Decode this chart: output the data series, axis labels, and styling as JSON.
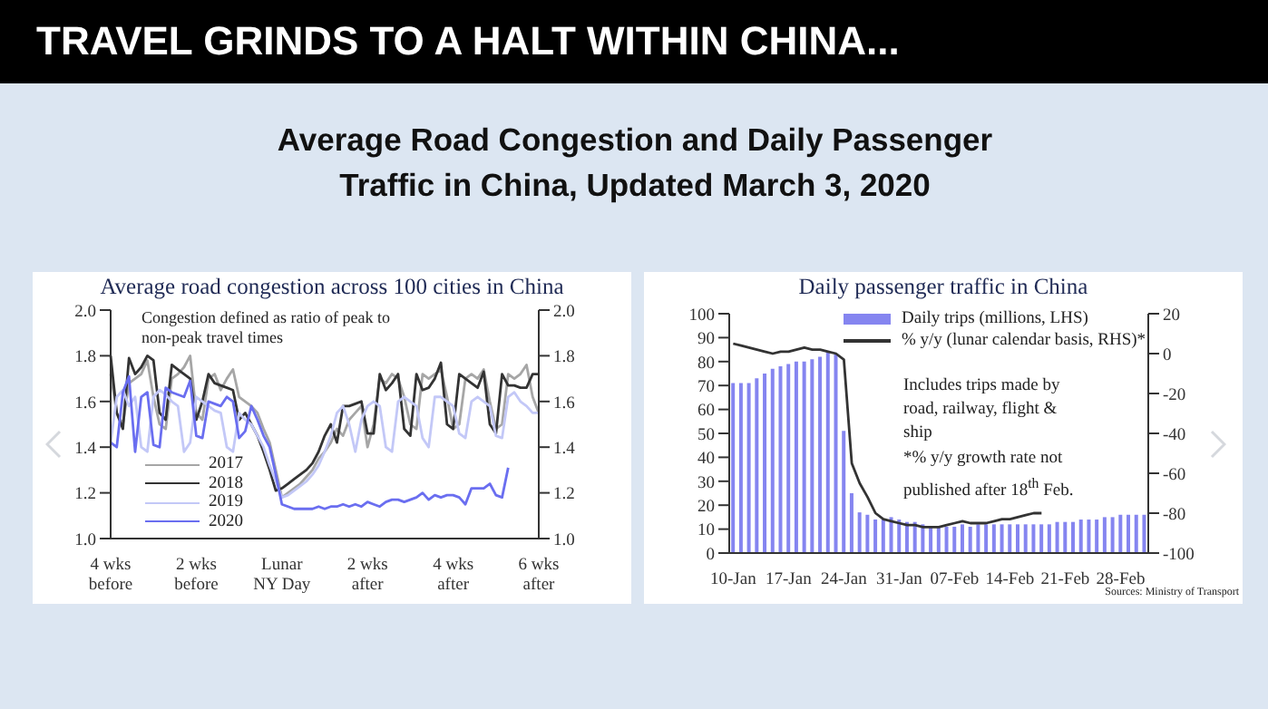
{
  "chart_data": [
    {
      "type": "line",
      "title": "Average road congestion across 100 cities in China",
      "annotations": [
        "TRAVEL GRINDS TO A HALT WITHIN CHINA...",
        "Average Road Congestion and Daily Passenger Traffic in China, Updated March 3, 2020",
        "Congestion  defined  as ratio of peak to non-peak  travel times"
      ],
      "categories": [
        "4 wks\nbefore",
        null,
        null,
        null,
        null,
        null,
        null,
        null,
        null,
        null,
        null,
        null,
        null,
        null,
        "2 wks\nbefore",
        null,
        null,
        null,
        null,
        null,
        null,
        null,
        null,
        null,
        null,
        null,
        null,
        null,
        "Lunar\nNY Day",
        null,
        null,
        null,
        null,
        null,
        null,
        null,
        null,
        null,
        null,
        null,
        null,
        null,
        "2 wks\nafter",
        null,
        null,
        null,
        null,
        null,
        null,
        null,
        null,
        null,
        null,
        null,
        null,
        null,
        "4 wks\nafter",
        null,
        null,
        null,
        null,
        null,
        null,
        null,
        null,
        null,
        null,
        null,
        null,
        null,
        "6 wks\nafter"
      ],
      "ylim": [
        1,
        2
      ],
      "yticks": [
        {
          "value": 1,
          "label": "1.0"
        },
        {
          "value": 1.2,
          "label": "1.2"
        },
        {
          "value": 1.4,
          "label": "1.4"
        },
        {
          "value": 1.6,
          "label": "1.6"
        },
        {
          "value": 1.8,
          "label": "1.8"
        },
        {
          "value": 2,
          "label": "2.0"
        }
      ],
      "y2lim": [
        1,
        2
      ],
      "y2ticks": [
        {
          "value": 1,
          "label": "1.0"
        },
        {
          "value": 1.2,
          "label": "1.2"
        },
        {
          "value": 1.4,
          "label": "1.4"
        },
        {
          "value": 1.6,
          "label": "1.6"
        },
        {
          "value": 1.8,
          "label": "1.8"
        },
        {
          "value": 2,
          "label": "2.0"
        }
      ],
      "legend": "left",
      "series": [
        {
          "name": "2017",
          "color": "#a6a6a6",
          "values": [
            1.72,
            1.55,
            1.5,
            1.68,
            1.7,
            1.72,
            1.78,
            1.62,
            1.5,
            1.48,
            1.7,
            1.72,
            1.75,
            1.8,
            1.55,
            1.52,
            1.7,
            1.72,
            1.65,
            1.7,
            1.74,
            1.62,
            1.6,
            1.58,
            1.55,
            1.48,
            1.42,
            1.3,
            1.18,
            1.2,
            1.22,
            1.24,
            1.27,
            1.3,
            1.35,
            1.38,
            1.42,
            1.48,
            1.45,
            1.52,
            1.55,
            1.58,
            1.4,
            1.5,
            1.7,
            1.68,
            1.72,
            1.7,
            1.62,
            1.5,
            1.48,
            1.72,
            1.7,
            1.72,
            1.74,
            1.62,
            1.48,
            1.5,
            1.7,
            1.72,
            1.7,
            1.74,
            1.6,
            1.48,
            1.5,
            1.72,
            1.7,
            1.72,
            1.76,
            1.62,
            1.55
          ]
        },
        {
          "name": "2018",
          "color": "#333333",
          "values": [
            1.8,
            1.55,
            1.48,
            1.79,
            1.72,
            1.75,
            1.8,
            1.78,
            1.55,
            1.52,
            1.76,
            1.74,
            1.72,
            1.7,
            1.52,
            1.6,
            1.72,
            1.68,
            1.67,
            1.66,
            1.65,
            1.52,
            1.55,
            1.5,
            1.45,
            1.38,
            1.3,
            1.21,
            1.22,
            1.24,
            1.26,
            1.28,
            1.3,
            1.33,
            1.38,
            1.45,
            1.5,
            1.42,
            1.58,
            1.58,
            1.59,
            1.6,
            1.46,
            1.46,
            1.72,
            1.65,
            1.68,
            1.72,
            1.48,
            1.45,
            1.72,
            1.65,
            1.66,
            1.7,
            1.77,
            1.5,
            1.48,
            1.72,
            1.7,
            1.68,
            1.66,
            1.73,
            1.5,
            1.46,
            1.72,
            1.67,
            1.67,
            1.66,
            1.66,
            1.72,
            1.72
          ]
        },
        {
          "name": "2019",
          "color": "#c3c8f7",
          "values": [
            1.42,
            1.62,
            1.65,
            1.58,
            1.62,
            1.4,
            1.38,
            1.62,
            1.65,
            1.63,
            1.6,
            1.58,
            1.38,
            1.42,
            1.62,
            1.6,
            1.58,
            1.56,
            1.55,
            1.4,
            1.38,
            1.55,
            1.52,
            1.5,
            1.45,
            1.4,
            1.32,
            1.25,
            1.18,
            1.19,
            1.21,
            1.23,
            1.25,
            1.28,
            1.32,
            1.38,
            1.45,
            1.55,
            1.58,
            1.5,
            1.38,
            1.52,
            1.58,
            1.6,
            1.58,
            1.4,
            1.38,
            1.6,
            1.62,
            1.6,
            1.58,
            1.44,
            1.4,
            1.62,
            1.62,
            1.6,
            1.58,
            1.46,
            1.44,
            1.6,
            1.62,
            1.6,
            1.58,
            1.45,
            1.44,
            1.62,
            1.64,
            1.6,
            1.58,
            1.55,
            1.55
          ]
        },
        {
          "name": "2020",
          "color": "#6a6ef0",
          "values": [
            1.42,
            1.4,
            1.64,
            1.71,
            1.38,
            1.62,
            1.64,
            1.41,
            1.4,
            1.66,
            1.64,
            1.63,
            1.62,
            1.69,
            1.45,
            1.44,
            1.6,
            1.59,
            1.58,
            1.62,
            1.6,
            1.44,
            1.47,
            1.58,
            1.52,
            1.45,
            1.4,
            1.28,
            1.15,
            1.14,
            1.13,
            1.13,
            1.13,
            1.13,
            1.14,
            1.13,
            1.14,
            1.14,
            1.15,
            1.14,
            1.15,
            1.14,
            1.16,
            1.15,
            1.14,
            1.16,
            1.17,
            1.17,
            1.16,
            1.17,
            1.18,
            1.2,
            1.17,
            1.19,
            1.18,
            1.19,
            1.19,
            1.18,
            1.15,
            1.22,
            1.22,
            1.22,
            1.24,
            1.19,
            1.18,
            1.31,
            null,
            null,
            null,
            null,
            null
          ]
        }
      ]
    },
    {
      "type": "bar",
      "title": "Daily passenger traffic in China",
      "annotations": [
        "Includes  trips made by road,  railway,  flight & ship",
        "*% y/y growth  rate not published  after 18$^{th}$ Feb.",
        "Sources: Ministry of Transport"
      ],
      "categories": [
        "10-Jan",
        null,
        null,
        null,
        null,
        null,
        null,
        "17-Jan",
        null,
        null,
        null,
        null,
        null,
        null,
        "24-Jan",
        null,
        null,
        null,
        null,
        null,
        null,
        "31-Jan",
        null,
        null,
        null,
        null,
        null,
        null,
        "07-Feb",
        null,
        null,
        null,
        null,
        null,
        null,
        "14-Feb",
        null,
        null,
        null,
        null,
        null,
        null,
        "21-Feb",
        null,
        null,
        null,
        null,
        null,
        null,
        "28-Feb",
        null,
        null,
        null
      ],
      "ylim": [
        0,
        100
      ],
      "yticks": [
        0,
        10,
        20,
        30,
        40,
        50,
        60,
        70,
        80,
        90,
        100
      ],
      "y2lim": [
        -100,
        20
      ],
      "y2ticks": [
        -100,
        -80,
        -60,
        -40,
        -20,
        0,
        20
      ],
      "legend": "top",
      "series": [
        {
          "name": "Daily trips (millions, LHS)",
          "color": "#8585f0",
          "values": [
            71,
            71,
            71,
            73,
            75,
            77,
            78,
            79,
            80,
            80,
            81,
            82,
            84,
            83,
            51,
            25,
            17,
            16,
            14,
            14,
            15,
            14,
            13,
            13,
            12,
            11,
            11,
            11,
            11,
            12,
            11,
            12,
            12,
            12,
            12,
            12,
            12,
            12,
            12,
            12,
            12,
            13,
            13,
            13,
            14,
            14,
            14,
            15,
            15,
            16,
            16,
            16,
            16
          ]
        },
        {
          "name": "% y/y (lunar calendar basis, RHS)*",
          "type": "line",
          "axis": "y2",
          "color": "#333333",
          "values": [
            5,
            4,
            3,
            2,
            1,
            0,
            1,
            1,
            2,
            3,
            2,
            2,
            1,
            0,
            -3,
            -55,
            -65,
            -72,
            -80,
            -83,
            -84,
            -85,
            -86,
            -86,
            -87,
            -87,
            -87,
            -86,
            -85,
            -84,
            -85,
            -85,
            -85,
            -84,
            -83,
            -83,
            -82,
            -81,
            -80,
            -80,
            null,
            null,
            null,
            null,
            null,
            null,
            null,
            null,
            null,
            null,
            null,
            null,
            null
          ]
        }
      ]
    }
  ]
}
